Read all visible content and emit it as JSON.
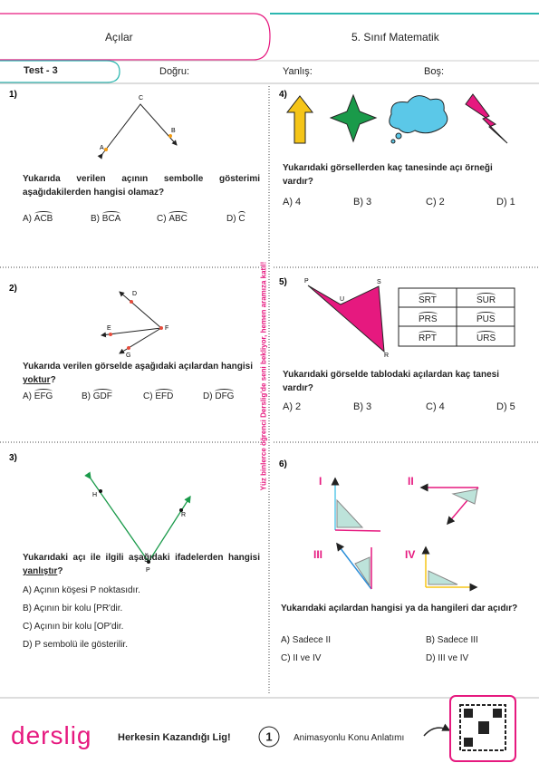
{
  "header": {
    "title": "Açılar",
    "subject": "5. Sınıf Matematik"
  },
  "score_bar": {
    "test": "Test - 3",
    "correct": "Doğru:",
    "wrong": "Yanlış:",
    "empty": "Boş:"
  },
  "side_banner": "Yüz binlerce öğrenci Derslig'de seni bekliyor, hemen aramıza katıl!",
  "questions": [
    {
      "number": "1)",
      "points": [
        "A",
        "C",
        "B"
      ],
      "text": "Yukarıda verilen açının sembolle gösterimi aşağıdakilerden hangisi olamaz?",
      "options": [
        {
          "letter": "A)",
          "angle": "ACB"
        },
        {
          "letter": "B)",
          "angle": "BCA"
        },
        {
          "letter": "C)",
          "angle": "ABC"
        },
        {
          "letter": "D)",
          "angle": "C"
        }
      ]
    },
    {
      "number": "2)",
      "points": [
        "D",
        "E",
        "F",
        "G"
      ],
      "text": "Yukarıda verilen görselde aşağıdaki açılardan hangisi",
      "emphasis": "yoktur",
      "end": "?",
      "options": [
        {
          "letter": "A)",
          "angle": "EFG"
        },
        {
          "letter": "B)",
          "angle": "GDF"
        },
        {
          "letter": "C)",
          "angle": "EFD"
        },
        {
          "letter": "D)",
          "angle": "DFG"
        }
      ]
    },
    {
      "number": "3)",
      "points": [
        "H",
        "P",
        "R"
      ],
      "text": "Yukarıdaki açı ile ilgili aşağıdaki ifadelerden hangisi",
      "emphasis": "yanlıştır",
      "end": "?",
      "options": [
        "A) Açının köşesi P noktasıdır.",
        "B) Açının bir kolu [PR'dir.",
        "C) Açının bir kolu [OP'dir.",
        "D) P sembolü ile gösterilir."
      ]
    },
    {
      "number": "4)",
      "text": "Yukarıdaki görsellerden kaç tanesinde açı örneği vardır?",
      "options": [
        "A) 4",
        "B) 3",
        "C) 2",
        "D) 1"
      ]
    },
    {
      "number": "5)",
      "points": [
        "P",
        "U",
        "S",
        "R"
      ],
      "table": [
        [
          "SRT",
          "SUR"
        ],
        [
          "PRS",
          "PUS"
        ],
        [
          "RPT",
          "URS"
        ]
      ],
      "text": "Yukarıdaki görselde tablodaki açılardan kaç tanesi vardır?",
      "options": [
        "A) 2",
        "B) 3",
        "C) 4",
        "D) 5"
      ]
    },
    {
      "number": "6)",
      "labels": [
        "I",
        "II",
        "III",
        "IV"
      ],
      "text": "Yukarıdaki açılardan hangisi ya da hangileri dar açıdır?",
      "options": [
        "A) Sadece II",
        "B) Sadece III",
        "C) II ve IV",
        "D) III ve IV"
      ]
    }
  ],
  "footer": {
    "brand": "derslig",
    "slogan": "Herkesin Kazandığı Lig!",
    "page": "1",
    "link": "Animasyonlu Konu Anlatımı"
  }
}
